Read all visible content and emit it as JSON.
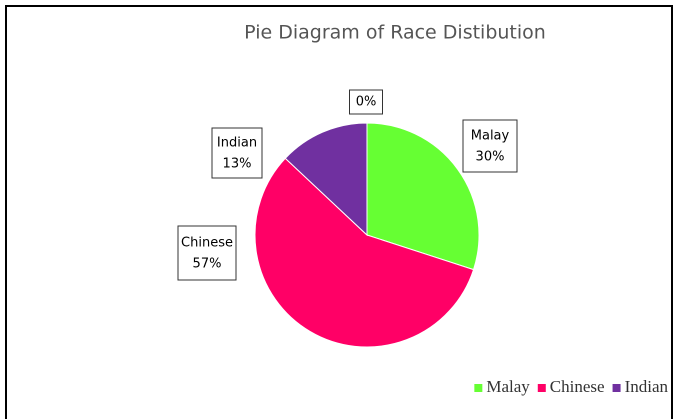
{
  "chart_data": {
    "type": "pie",
    "title": "Pie Diagram of Race Distibution",
    "categories": [
      "Malay",
      "Chinese",
      "Indian",
      null
    ],
    "values": [
      30,
      57,
      13,
      0
    ],
    "value_labels": [
      "30%",
      "57%",
      "13%",
      "0%"
    ],
    "colors": [
      "#66ff33",
      "#ff0066",
      "#7030a0",
      "#4f81bd"
    ],
    "legend": "bottom-right"
  }
}
